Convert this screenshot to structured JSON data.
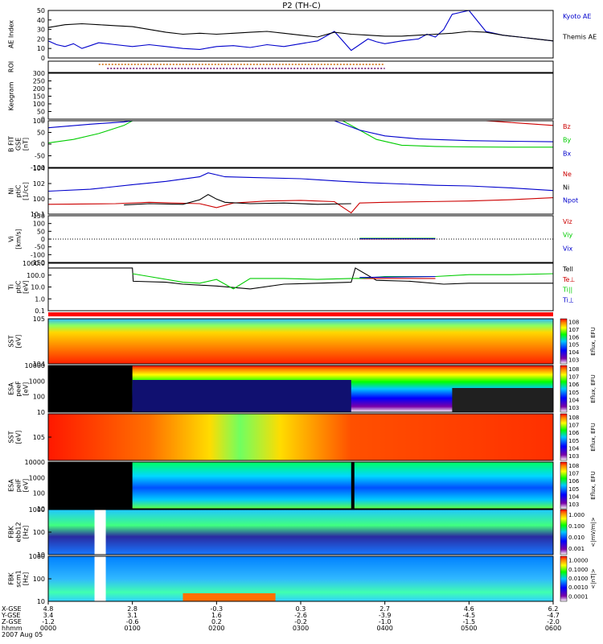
{
  "title": "P2 (TH-C)",
  "chart_data": {
    "type": "multi-panel time series",
    "x_axis": {
      "range": [
        "0000",
        "0600"
      ],
      "rows": [
        {
          "label": "X-GSE",
          "values": [
            "4.8",
            "2.8",
            "-0.3",
            "0.3",
            "2.7",
            "4.6",
            "6.2"
          ]
        },
        {
          "label": "Y-GSE",
          "values": [
            "3.4",
            "3.1",
            "1.6",
            "-2.6",
            "-3.9",
            "-4.5",
            "-4.7"
          ]
        },
        {
          "label": "Z-GSE",
          "values": [
            "-1.2",
            "-0.6",
            "0.2",
            "-0.2",
            "-1.0",
            "-1.5",
            "-2.0"
          ]
        },
        {
          "label": "hhmm",
          "values": [
            "0000",
            "0100",
            "0200",
            "0300",
            "0400",
            "0500",
            "0600"
          ]
        }
      ],
      "date": "2007 Aug 05"
    },
    "panels": [
      {
        "id": "ae",
        "ylabel": "AE Index",
        "ylim": [
          0,
          50
        ],
        "ticks": [
          "0",
          "10",
          "20",
          "30",
          "40",
          "50"
        ],
        "series": [
          {
            "name": "Kyoto AE",
            "color": "#0000cc",
            "type": "line",
            "x": [
              0,
              0.1,
              0.2,
              0.3,
              0.4,
              0.5,
              0.6,
              0.8,
              1.0,
              1.2,
              1.4,
              1.6,
              1.8,
              2.0,
              2.2,
              2.4,
              2.6,
              2.8,
              3.0,
              3.2,
              3.4,
              3.6,
              3.8,
              3.9,
              4.0,
              4.2,
              4.4,
              4.5,
              4.6,
              4.7,
              4.8,
              5.0,
              5.2,
              5.4,
              5.6,
              5.8,
              6.0
            ],
            "y": [
              18,
              14,
              12,
              15,
              10,
              13,
              16,
              14,
              12,
              14,
              12,
              10,
              9,
              12,
              13,
              11,
              14,
              12,
              15,
              18,
              28,
              8,
              20,
              17,
              15,
              18,
              20,
              25,
              22,
              30,
              46,
              52,
              28,
              24,
              22,
              20,
              18
            ]
          },
          {
            "name": "Themis AE",
            "color": "#000000",
            "type": "line",
            "x": [
              0,
              0.2,
              0.4,
              0.6,
              0.8,
              1.0,
              1.2,
              1.4,
              1.6,
              1.8,
              2.0,
              2.2,
              2.4,
              2.6,
              2.8,
              3.0,
              3.2,
              3.4,
              3.6,
              3.8,
              4.0,
              4.2,
              4.4,
              4.6,
              4.8,
              5.0,
              5.2,
              5.4,
              5.6,
              5.8,
              6.0
            ],
            "y": [
              32,
              35,
              36,
              35,
              34,
              33,
              30,
              27,
              25,
              26,
              25,
              26,
              27,
              28,
              26,
              24,
              22,
              27,
              25,
              24,
              23,
              23,
              24,
              25,
              26,
              28,
              27,
              24,
              22,
              20,
              18
            ]
          }
        ]
      },
      {
        "id": "roi",
        "ylabel": "ROI",
        "series": [
          {
            "name": "",
            "color": "#cc6600",
            "x": [
              0.6,
              4.0
            ]
          },
          {
            "name": "",
            "color": "#660066",
            "x": [
              0.7,
              4.0
            ]
          }
        ]
      },
      {
        "id": "keogram",
        "ylabel": "Keogram",
        "ylim": [
          0,
          300
        ],
        "ticks": [
          "0",
          "50",
          "100",
          "150",
          "200",
          "250",
          "300"
        ]
      },
      {
        "id": "bfit",
        "ylabel": "B FIT",
        "ylabel2": "GSE",
        "units": "[nT]",
        "ylim": [
          -100,
          100
        ],
        "ticks": [
          "-100",
          "-50",
          "0",
          "50",
          "100"
        ],
        "series": [
          {
            "name": "Bz",
            "color": "#cc0000",
            "x": [
              5.2,
              5.6,
              6.0
            ],
            "y": [
              100,
              90,
              80
            ]
          },
          {
            "name": "By",
            "color": "#00cc00",
            "x": [
              0,
              0.3,
              0.6,
              0.9,
              1.0,
              3.5,
              3.7,
              3.9,
              4.2,
              4.6,
              5.0,
              5.5,
              6.0
            ],
            "y": [
              5,
              20,
              45,
              80,
              100,
              100,
              60,
              20,
              -5,
              -10,
              -12,
              -13,
              -13
            ]
          },
          {
            "name": "Bx",
            "color": "#0000cc",
            "x": [
              0,
              0.5,
              0.9,
              1.0,
              3.4,
              3.7,
              4.0,
              4.4,
              5.0,
              5.5,
              6.0
            ],
            "y": [
              70,
              85,
              95,
              100,
              100,
              60,
              35,
              22,
              15,
              12,
              10
            ]
          }
        ]
      },
      {
        "id": "ni",
        "ylabel": "Ni",
        "ylabel2": "ptiC",
        "units": "[1/cc]",
        "ylim": [
          -2,
          5
        ],
        "ticks": [
          "10-1",
          "100",
          "102",
          "104"
        ],
        "series": [
          {
            "name": "Ne",
            "color": "#cc0000",
            "x": [
              0,
              0.8,
              1.2,
              1.8,
              2.0,
              2.2,
              2.6,
              3.0,
              3.4,
              3.6,
              3.7,
              4.0,
              4.5,
              5.0,
              5.5,
              6.0
            ],
            "y": [
              -0.5,
              -0.4,
              -0.2,
              -0.4,
              -1.0,
              -0.3,
              0,
              0.1,
              -0.1,
              -1.8,
              -0.3,
              -0.2,
              -0.1,
              0.0,
              0.2,
              0.5
            ]
          },
          {
            "name": "Ni",
            "color": "#000000",
            "x": [
              0.9,
              1.2,
              1.6,
              1.8,
              1.9,
              2.0,
              2.1,
              2.4,
              2.8,
              3.2,
              3.6
            ],
            "y": [
              -0.6,
              -0.4,
              -0.5,
              0.2,
              1.0,
              0.3,
              -0.2,
              -0.4,
              -0.3,
              -0.5,
              -0.4
            ]
          },
          {
            "name": "Npot",
            "color": "#0000cc",
            "x": [
              0,
              0.5,
              1.0,
              1.4,
              1.8,
              1.9,
              2.0,
              2.1,
              2.4,
              3.0,
              3.5,
              3.8,
              4.2,
              4.6,
              5.0,
              5.5,
              6.0
            ],
            "y": [
              1.5,
              1.8,
              2.5,
              3.0,
              3.7,
              4.3,
              4.0,
              3.7,
              3.6,
              3.4,
              3.0,
              2.8,
              2.6,
              2.4,
              2.3,
              2.0,
              1.6
            ]
          }
        ]
      },
      {
        "id": "vi",
        "ylabel": "Vi",
        "units": "[km/s]",
        "ylim": [
          -150,
          150
        ],
        "ticks": [
          "-150",
          "-100",
          "-50",
          "0",
          "50",
          "100",
          "150"
        ],
        "series": [
          {
            "name": "Viz",
            "color": "#cc0000",
            "x": [
              3.7,
              4.6
            ],
            "y": [
              0,
              0
            ]
          },
          {
            "name": "Viy",
            "color": "#00cc00",
            "x": [
              3.7,
              4.6
            ],
            "y": [
              5,
              5
            ]
          },
          {
            "name": "Vix",
            "color": "#0000cc",
            "x": [
              3.7,
              4.6
            ],
            "y": [
              2,
              2
            ]
          }
        ]
      },
      {
        "id": "ti",
        "ylabel": "Ti",
        "ylabel2": "ptiC",
        "units": "[eV]",
        "ylim": [
          -1,
          4
        ],
        "ticks": [
          "0.1",
          "1.0",
          "10.0",
          "100.0",
          "1000.0"
        ],
        "series": [
          {
            "name": "Tell",
            "color": "#000000",
            "x": [
              0,
              1.0,
              1.01,
              1.4,
              1.6,
              2.0,
              2.4,
              2.8,
              3.2,
              3.6,
              3.65,
              3.9,
              4.3,
              4.7,
              5.0,
              5.5,
              6.0
            ],
            "y": [
              3.5,
              3.5,
              2.1,
              2.0,
              1.8,
              1.6,
              1.3,
              1.8,
              1.9,
              2.0,
              3.5,
              2.2,
              2.1,
              1.8,
              1.9,
              1.9,
              1.9
            ]
          },
          {
            "name": "Te⊥",
            "color": "#cc0000",
            "x": [
              3.65,
              4.6
            ],
            "y": [
              2.4,
              2.4
            ]
          },
          {
            "name": "Ti||",
            "color": "#00cc00",
            "x": [
              1.0,
              1.2,
              1.6,
              1.8,
              2.0,
              2.2,
              2.4,
              2.8,
              3.2,
              3.6,
              3.7,
              4.0,
              4.6,
              5.0,
              5.5,
              6.0
            ],
            "y": [
              2.9,
              2.6,
              2.0,
              1.9,
              2.3,
              1.3,
              2.4,
              2.4,
              2.3,
              2.4,
              2.4,
              2.6,
              2.6,
              2.8,
              2.8,
              2.9
            ]
          },
          {
            "name": "Ti⊥",
            "color": "#0000cc",
            "x": [
              3.7,
              4.6
            ],
            "y": [
              2.5,
              2.6
            ]
          }
        ]
      },
      {
        "id": "sst_e",
        "ylabel": "SST",
        "units": "[eV]",
        "ticks": [
          "104",
          "105"
        ],
        "colorbar": "Eflux, EFU",
        "cb_ticks": [
          "103",
          "104",
          "105",
          "106",
          "107",
          "108"
        ]
      },
      {
        "id": "esa_e",
        "ylabel": "ESA",
        "ylabel2": "peeF",
        "units": "[eV]",
        "ticks": [
          "10",
          "100",
          "1000",
          "10000"
        ],
        "colorbar": "Eflux, EFU",
        "cb_ticks": [
          "103",
          "104",
          "105",
          "106",
          "107",
          "108"
        ]
      },
      {
        "id": "sst_i",
        "ylabel": "SST",
        "units": "[eV]",
        "ticks": [
          "105"
        ],
        "colorbar": "Eflux, EFU",
        "cb_ticks": [
          "103",
          "104",
          "105",
          "106",
          "107",
          "108"
        ]
      },
      {
        "id": "esa_i",
        "ylabel": "ESA",
        "ylabel2": "peiF",
        "units": "[eV]",
        "ticks": [
          "10",
          "100",
          "1000",
          "10000"
        ],
        "colorbar": "Eflux, EFU",
        "cb_ticks": [
          "103",
          "104",
          "105",
          "106",
          "107",
          "108"
        ]
      },
      {
        "id": "fbk_e",
        "ylabel": "FBK",
        "ylabel2": "ebb12",
        "units": "[Hz]",
        "ticks": [
          "10",
          "100",
          "1000"
        ],
        "colorbar": "<|mV/m|>",
        "cb_ticks": [
          "0.001",
          "0.010",
          "0.100",
          "1.000"
        ]
      },
      {
        "id": "fbk_b",
        "ylabel": "FBK",
        "ylabel2": "scm1",
        "units": "[Hz]",
        "ticks": [
          "10",
          "100",
          "1000"
        ],
        "colorbar": "<|nT|>",
        "cb_ticks": [
          "0.0001",
          "0.0010",
          "0.0100",
          "0.1000",
          "1.0000"
        ]
      }
    ]
  }
}
